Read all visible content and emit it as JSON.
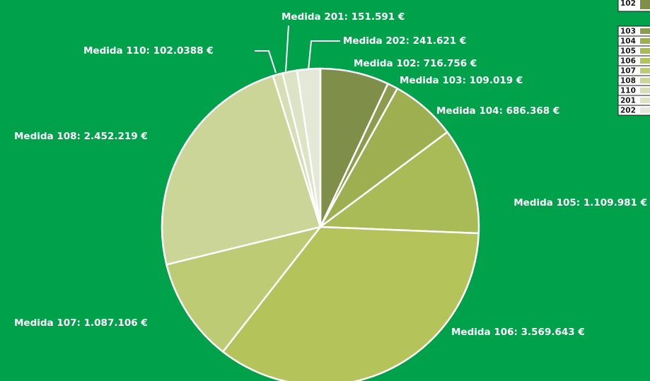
{
  "chart_data": {
    "type": "pie",
    "categories": [
      "102",
      "103",
      "104",
      "105",
      "106",
      "107",
      "108",
      "110",
      "201",
      "202"
    ],
    "values": [
      716756,
      109019,
      686368,
      1109981,
      3569643,
      1087106,
      2452219,
      102038.8,
      151591,
      241621
    ],
    "value_labels": [
      "Medida 102: 716.756 €",
      "Medida 103:  109.019 €",
      "Medida 104: 686.368 €",
      "Medida 105: 1.109.981 €",
      "Medida 106: 3.569.643 €",
      "Medida 107: 1.087.106 €",
      "Medida 108: 2.452.219 €",
      "Medida 110: 102.0388 €",
      "Medida 201: 151.591 €",
      "Medida 202: 241.621 €"
    ],
    "colors": [
      "#7f8f4a",
      "#8c9c4e",
      "#9daf50",
      "#a9bb57",
      "#b5c35b",
      "#bccb74",
      "#cbd597",
      "#d6deb5",
      "#dde3c5",
      "#e4e9d7"
    ]
  }
}
